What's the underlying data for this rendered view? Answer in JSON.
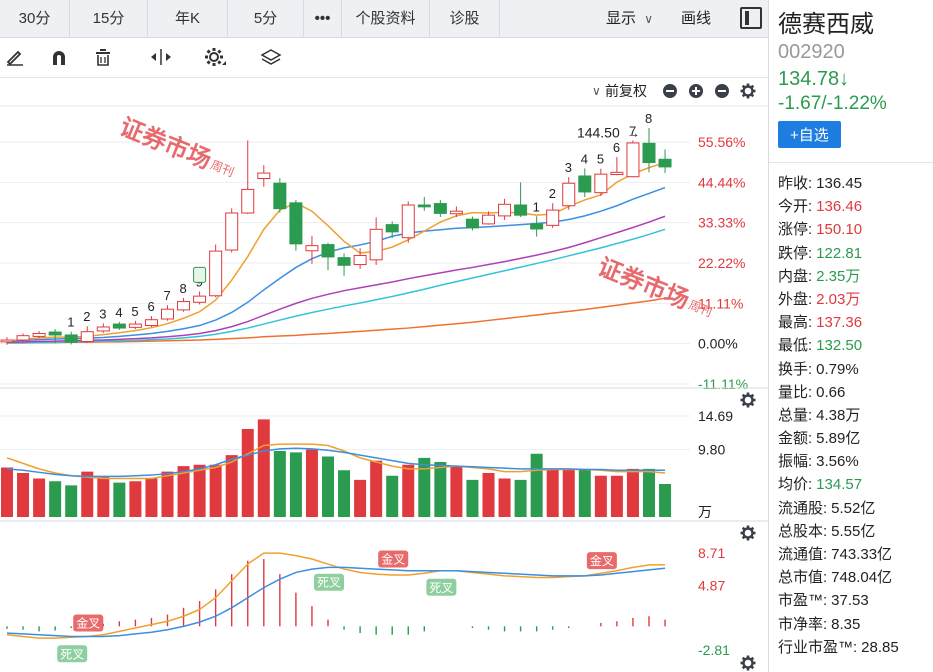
{
  "tabs": [
    "30分",
    "15分",
    "年K",
    "5分",
    "•••",
    "个股资料",
    "诊股"
  ],
  "display_menu": {
    "label": "显示",
    "chevron": "chevron-down-icon"
  },
  "draw_label": "画线",
  "toolbar_icons": [
    "pencil-icon",
    "magnet-icon",
    "trash-icon",
    "move-icon",
    "settings-icon",
    "layers-icon"
  ],
  "adjust_label": "前复权",
  "quote": {
    "name": "德赛西威",
    "code": "002920",
    "price": "134.78↓",
    "change": "-1.67/-1.22%",
    "watch_label": "+自选",
    "stats": [
      {
        "label": "昨收:",
        "value": "136.45",
        "color": "#222222"
      },
      {
        "label": "今开:",
        "value": "136.46",
        "color": "#e0393e"
      },
      {
        "label": "涨停:",
        "value": "150.10",
        "color": "#e0393e"
      },
      {
        "label": "跌停:",
        "value": "122.81",
        "color": "#2b9b4f"
      },
      {
        "label": "内盘:",
        "value": "2.35万",
        "color": "#2b9b4f"
      },
      {
        "label": "外盘:",
        "value": "2.03万",
        "color": "#e0393e"
      },
      {
        "label": "最高:",
        "value": "137.36",
        "color": "#e0393e"
      },
      {
        "label": "最低:",
        "value": "132.50",
        "color": "#2b9b4f"
      },
      {
        "label": "换手:",
        "value": "0.79%",
        "color": "#222222"
      },
      {
        "label": "量比:",
        "value": "0.66",
        "color": "#222222"
      },
      {
        "label": "总量:",
        "value": "4.38万",
        "color": "#222222"
      },
      {
        "label": "金额:",
        "value": "5.89亿",
        "color": "#222222"
      },
      {
        "label": "振幅:",
        "value": "3.56%",
        "color": "#222222"
      },
      {
        "label": "均价:",
        "value": "134.57",
        "color": "#2b9b4f"
      },
      {
        "label": "流通股:",
        "value": "5.52亿",
        "color": "#222222"
      },
      {
        "label": "总股本:",
        "value": "5.55亿",
        "color": "#222222"
      },
      {
        "label": "流通值:",
        "value": "743.33亿",
        "color": "#222222"
      },
      {
        "label": "总市值:",
        "value": "748.04亿",
        "color": "#222222"
      },
      {
        "label": "市盈™:",
        "value": "37.53",
        "color": "#222222"
      },
      {
        "label": "市净率:",
        "value": "8.35",
        "color": "#222222"
      },
      {
        "label": "行业市盈™:",
        "value": "28.85",
        "color": "#222222"
      }
    ]
  },
  "price_axis": [
    {
      "label": "55.56%",
      "color": "#e0393e"
    },
    {
      "label": "44.44%",
      "color": "#e0393e"
    },
    {
      "label": "33.33%",
      "color": "#e0393e"
    },
    {
      "label": "22.22%",
      "color": "#e0393e"
    },
    {
      "label": "11.11%",
      "color": "#e0393e"
    },
    {
      "label": "0.00%",
      "color": "#222222"
    },
    {
      "label": "-11.11%",
      "color": "#2b9b4f"
    }
  ],
  "volume_axis": [
    "14.69",
    "9.80",
    "万"
  ],
  "macd_axis": [
    {
      "label": "8.71",
      "color": "#e0393e"
    },
    {
      "label": "4.87",
      "color": "#e0393e"
    },
    {
      "label": "-2.81",
      "color": "#2b9b4f"
    }
  ],
  "price_annotation": "144.50",
  "watermark": {
    "title": "证券市场",
    "sub": "周刊"
  },
  "colors": {
    "up": "#e0393e",
    "down": "#2b9b4f",
    "ma5": "#f0a030",
    "ma10": "#3b8fe0",
    "ma20": "#b040b8",
    "ma30": "#33c4d8",
    "ma60": "#f07030"
  },
  "chart_data": {
    "type": "candlestick",
    "y_range_pct": [
      -11.11,
      55.56
    ],
    "candles": [
      {
        "o": 0.5,
        "c": 1.0,
        "h": 1.8,
        "l": -0.3
      },
      {
        "o": 1.0,
        "c": 2.2,
        "h": 2.8,
        "l": 0.3
      },
      {
        "o": 2.0,
        "c": 2.8,
        "h": 3.5,
        "l": 1.5
      },
      {
        "o": 3.2,
        "c": 2.4,
        "h": 4.0,
        "l": 0.2
      },
      {
        "o": 2.4,
        "c": 0.4,
        "h": 3.3,
        "l": -0.2
      },
      {
        "o": 0.6,
        "c": 3.3,
        "h": 4.8,
        "l": 0.2
      },
      {
        "o": 3.5,
        "c": 4.6,
        "h": 5.6,
        "l": 3.0
      },
      {
        "o": 5.4,
        "c": 4.3,
        "h": 6.0,
        "l": 3.8
      },
      {
        "o": 4.5,
        "c": 5.4,
        "h": 6.3,
        "l": 4.0
      },
      {
        "o": 5.0,
        "c": 6.6,
        "h": 7.6,
        "l": 4.6
      },
      {
        "o": 6.8,
        "c": 9.5,
        "h": 10.6,
        "l": 6.3
      },
      {
        "o": 9.3,
        "c": 11.6,
        "h": 12.6,
        "l": 8.8
      },
      {
        "o": 11.4,
        "c": 13.1,
        "h": 14.4,
        "l": 10.8
      },
      {
        "o": 13.2,
        "c": 25.5,
        "h": 27.3,
        "l": 12.8
      },
      {
        "o": 25.8,
        "c": 36.0,
        "h": 37.3,
        "l": 25.1
      },
      {
        "o": 36.0,
        "c": 42.5,
        "h": 56.0,
        "l": 35.7
      },
      {
        "o": 45.5,
        "c": 47.0,
        "h": 49.2,
        "l": 43.2
      },
      {
        "o": 44.2,
        "c": 37.2,
        "h": 45.6,
        "l": 36.1
      },
      {
        "o": 38.8,
        "c": 27.5,
        "h": 39.6,
        "l": 25.6
      },
      {
        "o": 25.6,
        "c": 27.0,
        "h": 29.7,
        "l": 22.0
      },
      {
        "o": 27.3,
        "c": 23.9,
        "h": 27.8,
        "l": 20.3
      },
      {
        "o": 23.7,
        "c": 21.6,
        "h": 24.9,
        "l": 18.7
      },
      {
        "o": 21.8,
        "c": 24.3,
        "h": 26.3,
        "l": 20.6
      },
      {
        "o": 23.1,
        "c": 31.5,
        "h": 34.8,
        "l": 21.7
      },
      {
        "o": 32.8,
        "c": 30.8,
        "h": 33.7,
        "l": 29.1
      },
      {
        "o": 29.2,
        "c": 38.2,
        "h": 39.2,
        "l": 27.8
      },
      {
        "o": 38.2,
        "c": 37.7,
        "h": 40.4,
        "l": 36.6
      },
      {
        "o": 38.6,
        "c": 35.9,
        "h": 39.6,
        "l": 34.9
      },
      {
        "o": 35.8,
        "c": 36.5,
        "h": 37.8,
        "l": 34.9
      },
      {
        "o": 34.3,
        "c": 31.9,
        "h": 35.0,
        "l": 31.2
      },
      {
        "o": 33.0,
        "c": 35.4,
        "h": 36.4,
        "l": 32.8
      },
      {
        "o": 35.2,
        "c": 38.4,
        "h": 39.9,
        "l": 34.1
      },
      {
        "o": 38.2,
        "c": 35.4,
        "h": 44.4,
        "l": 34.9
      },
      {
        "o": 33.0,
        "c": 31.6,
        "h": 35.1,
        "l": 29.5
      },
      {
        "o": 32.6,
        "c": 36.8,
        "h": 38.7,
        "l": 31.9
      },
      {
        "o": 38.0,
        "c": 44.2,
        "h": 45.9,
        "l": 36.9
      },
      {
        "o": 46.2,
        "c": 41.8,
        "h": 48.3,
        "l": 40.4
      },
      {
        "o": 41.6,
        "c": 46.7,
        "h": 48.2,
        "l": 40.7
      },
      {
        "o": 46.6,
        "c": 47.2,
        "h": 51.4,
        "l": 46.4
      },
      {
        "o": 46.0,
        "c": 55.3,
        "h": 56.0,
        "l": 45.8
      },
      {
        "o": 55.2,
        "c": 49.9,
        "h": 59.4,
        "l": 47.2
      },
      {
        "o": 50.8,
        "c": 48.7,
        "h": 53.5,
        "l": 47.0
      }
    ],
    "candle_labels": [
      {
        "i": 4,
        "text": "1"
      },
      {
        "i": 5,
        "text": "2"
      },
      {
        "i": 6,
        "text": "3"
      },
      {
        "i": 7,
        "text": "4"
      },
      {
        "i": 8,
        "text": "5"
      },
      {
        "i": 9,
        "text": "6"
      },
      {
        "i": 10,
        "text": "7"
      },
      {
        "i": 11,
        "text": "8"
      },
      {
        "i": 12,
        "text": "9"
      },
      {
        "i": 33,
        "text": "1"
      },
      {
        "i": 34,
        "text": "2"
      },
      {
        "i": 35,
        "text": "3"
      },
      {
        "i": 36,
        "text": "4"
      },
      {
        "i": 37,
        "text": "5"
      },
      {
        "i": 38,
        "text": "6"
      },
      {
        "i": 39,
        "text": "7"
      },
      {
        "i": 40,
        "text": "8"
      }
    ],
    "ma": {
      "ma5": [
        0.8,
        1.2,
        1.6,
        1.8,
        1.8,
        2.0,
        2.5,
        3.0,
        3.6,
        4.4,
        5.5,
        7.0,
        8.8,
        12.0,
        17.5,
        24.0,
        31.5,
        36.8,
        38.8,
        36.5,
        32.5,
        28.2,
        25.0,
        25.4,
        26.6,
        28.6,
        31.0,
        33.5,
        35.2,
        36.1,
        36.0,
        36.2,
        36.0,
        35.4,
        35.7,
        37.8,
        39.6,
        41.0,
        44.5,
        46.8,
        48.5,
        49.9
      ],
      "ma10": [
        0.7,
        0.9,
        1.1,
        1.3,
        1.4,
        1.5,
        1.7,
        2.0,
        2.4,
        2.8,
        3.4,
        4.1,
        5.0,
        6.5,
        8.6,
        11.4,
        14.8,
        18.0,
        21.0,
        23.4,
        25.2,
        26.4,
        27.2,
        28.2,
        29.6,
        30.5,
        31.0,
        31.4,
        31.8,
        32.0,
        32.2,
        32.5,
        32.8,
        33.1,
        33.5,
        34.2,
        35.2,
        36.5,
        38.0,
        39.8,
        41.4,
        43.0
      ],
      "ma20": [
        0.4,
        0.5,
        0.6,
        0.7,
        0.8,
        0.9,
        1.0,
        1.2,
        1.4,
        1.6,
        1.9,
        2.3,
        2.8,
        3.6,
        4.7,
        6.1,
        7.8,
        9.5,
        11.1,
        12.5,
        13.6,
        14.6,
        15.4,
        16.2,
        17.0,
        17.9,
        18.7,
        19.5,
        20.3,
        21.0,
        21.8,
        22.6,
        23.5,
        24.4,
        25.4,
        26.5,
        27.8,
        29.2,
        30.6,
        32.0,
        33.5,
        35.1
      ],
      "ma30": [
        0.2,
        0.3,
        0.3,
        0.4,
        0.5,
        0.6,
        0.7,
        0.8,
        0.9,
        1.1,
        1.3,
        1.6,
        2.0,
        2.6,
        3.4,
        4.3,
        5.4,
        6.5,
        7.6,
        8.6,
        9.5,
        10.4,
        11.2,
        12.1,
        13.0,
        14.0,
        15.0,
        16.1,
        17.1,
        18.1,
        19.1,
        20.1,
        21.1,
        22.1,
        23.1,
        24.2,
        25.3,
        26.4,
        27.6,
        28.8,
        30.1,
        31.5
      ],
      "ma60": [
        0.2,
        0.2,
        0.3,
        0.3,
        0.4,
        0.4,
        0.5,
        0.5,
        0.6,
        0.7,
        0.8,
        0.9,
        1.0,
        1.2,
        1.4,
        1.6,
        1.9,
        2.1,
        2.3,
        2.6,
        2.8,
        3.1,
        3.4,
        3.7,
        4.0,
        4.3,
        4.7,
        5.1,
        5.5,
        5.9,
        6.4,
        6.9,
        7.4,
        7.9,
        8.4,
        8.9,
        9.4,
        10.0,
        10.6,
        11.2,
        11.8,
        12.5
      ]
    },
    "volume_range": [
      0,
      14.69
    ],
    "volume": [
      7.2,
      6.4,
      5.6,
      5.2,
      4.6,
      6.6,
      5.8,
      5.0,
      5.2,
      5.6,
      6.6,
      7.4,
      7.6,
      7.6,
      9.0,
      12.8,
      14.2,
      9.6,
      9.4,
      9.8,
      8.8,
      6.8,
      5.4,
      8.2,
      6.0,
      7.6,
      8.6,
      8.0,
      7.4,
      5.4,
      6.4,
      5.6,
      5.4,
      9.2,
      7.0,
      7.0,
      7.0,
      6.0,
      6.0,
      7.0,
      7.0,
      4.8
    ],
    "volume_ma": [
      8.6,
      7.8,
      7.0,
      6.4,
      6.0,
      5.8,
      5.6,
      5.6,
      5.6,
      5.6,
      6.0,
      6.4,
      6.8,
      7.2,
      8.0,
      9.2,
      10.4,
      10.6,
      10.6,
      10.6,
      10.4,
      9.6,
      8.6,
      8.0,
      7.4,
      7.0,
      7.0,
      7.2,
      7.4,
      7.2,
      7.0,
      6.6,
      6.6,
      6.8,
      6.9,
      6.9,
      6.9,
      6.8,
      6.6,
      6.6,
      6.6,
      6.4
    ],
    "volume_ma2": [
      7.0,
      6.8,
      6.5,
      6.2,
      6.0,
      5.9,
      5.9,
      5.9,
      6.0,
      6.1,
      6.3,
      6.6,
      7.0,
      7.6,
      8.4,
      9.0,
      9.6,
      9.9,
      10.0,
      9.9,
      9.7,
      9.4,
      9.0,
      8.6,
      8.2,
      7.8,
      7.6,
      7.5,
      7.4,
      7.3,
      7.2,
      7.1,
      7.0,
      7.0,
      7.0,
      7.0,
      6.9,
      6.9,
      6.8,
      6.8,
      6.8,
      6.8
    ],
    "macd_range": [
      -2.81,
      8.71
    ],
    "dif": [
      -1.0,
      -1.2,
      -1.4,
      -1.4,
      -1.3,
      -1.2,
      -1.0,
      -0.6,
      -0.2,
      0.2,
      0.6,
      1.2,
      2.0,
      3.4,
      5.4,
      7.4,
      8.7,
      8.7,
      8.4,
      8.0,
      7.4,
      6.8,
      6.4,
      6.2,
      6.1,
      6.1,
      6.3,
      6.6,
      6.6,
      6.4,
      6.2,
      6.0,
      5.9,
      5.8,
      5.8,
      5.9,
      6.0,
      6.3,
      6.6,
      7.0,
      7.3,
      7.3
    ],
    "dea": [
      -0.8,
      -0.9,
      -1.0,
      -1.1,
      -1.2,
      -1.2,
      -1.2,
      -1.1,
      -0.9,
      -0.7,
      -0.4,
      0.0,
      0.5,
      1.2,
      2.2,
      3.4,
      4.6,
      5.6,
      6.4,
      6.8,
      7.0,
      7.0,
      6.9,
      6.8,
      6.7,
      6.6,
      6.6,
      6.6,
      6.6,
      6.5,
      6.4,
      6.3,
      6.2,
      6.1,
      6.0,
      6.0,
      6.0,
      6.1,
      6.3,
      6.5,
      6.7,
      6.9
    ],
    "macd_hist": [
      -0.3,
      -0.4,
      -0.6,
      -0.5,
      -0.2,
      0.1,
      0.3,
      0.6,
      0.8,
      1.0,
      1.4,
      2.2,
      3.0,
      4.4,
      6.2,
      7.8,
      8.0,
      6.2,
      4.0,
      2.4,
      0.8,
      -0.4,
      -0.8,
      -1.0,
      -1.0,
      -1.0,
      -0.6,
      0.0,
      0.0,
      -0.2,
      -0.4,
      -0.6,
      -0.6,
      -0.6,
      -0.4,
      -0.2,
      0.0,
      0.4,
      0.6,
      1.0,
      1.2,
      0.8
    ],
    "macd_events": [
      {
        "i": 5,
        "text": "金叉",
        "kind": "golden",
        "value": -1.2
      },
      {
        "i": 4,
        "text": "死叉",
        "kind": "death",
        "value": -1.3
      },
      {
        "i": 20,
        "text": "死叉",
        "kind": "death",
        "value": 7.2
      },
      {
        "i": 24,
        "text": "金叉",
        "kind": "golden",
        "value": 6.4
      },
      {
        "i": 27,
        "text": "死叉",
        "kind": "death",
        "value": 6.6
      },
      {
        "i": 37,
        "text": "金叉",
        "kind": "golden",
        "value": 6.2
      }
    ]
  }
}
